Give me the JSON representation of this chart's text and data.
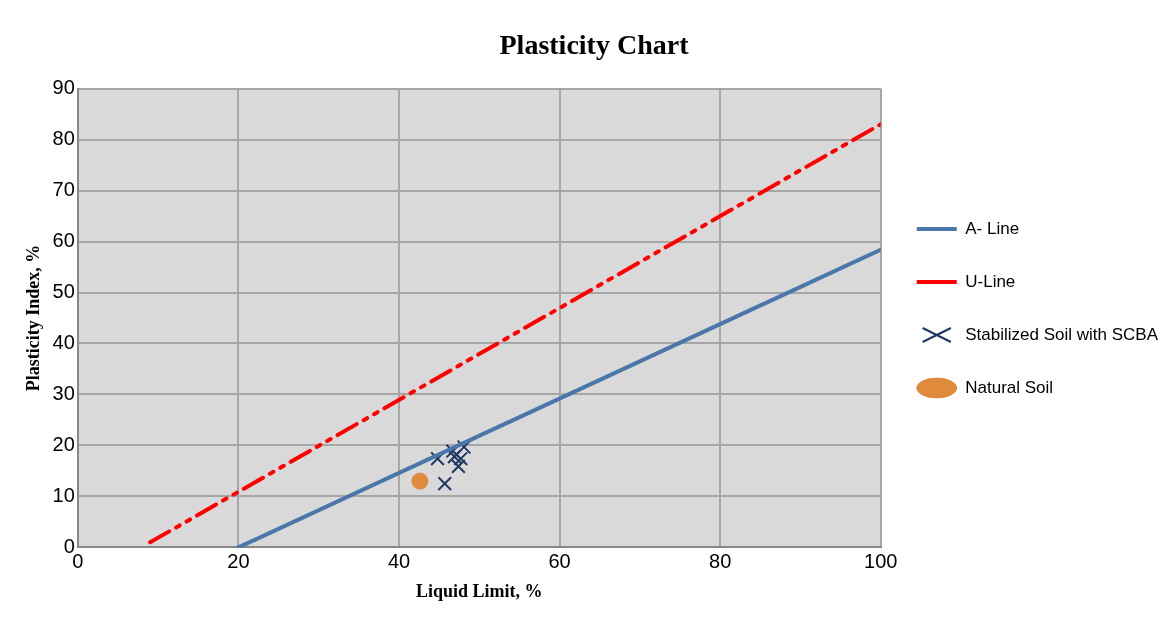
{
  "chart_data": {
    "type": "scatter",
    "title": "Plasticity Chart",
    "xlabel": "Liquid Limit, %",
    "ylabel": "Plasticity Index, %",
    "xlim": [
      0,
      100
    ],
    "xticks": [
      0,
      20,
      40,
      60,
      80,
      100
    ],
    "ylim": [
      0,
      90
    ],
    "yticks": [
      0,
      10,
      20,
      30,
      40,
      50,
      60,
      70,
      80,
      90
    ],
    "grid": true,
    "legend": "right",
    "series": [
      {
        "name": "A- Line",
        "type": "line",
        "color": "#4a76aa",
        "marker": "none",
        "line_style": "solid",
        "x": [
          20,
          100
        ],
        "values": [
          0,
          58.4
        ]
      },
      {
        "name": "U-Line",
        "type": "line",
        "color": "#ff0000",
        "marker": "none",
        "line_style": "dashed",
        "x": [
          9,
          100
        ],
        "values": [
          1,
          83
        ]
      },
      {
        "name": "Stabilized Soil with SCBA",
        "type": "scatter",
        "color": "#1f3864",
        "marker": "cross",
        "x": [
          44.8,
          45.7,
          46.7,
          47.7,
          48.1,
          47.4,
          46.9
        ],
        "values": [
          17.4,
          12.5,
          18.9,
          17.4,
          19.7,
          15.9,
          17.8
        ]
      },
      {
        "name": "Natural Soil",
        "type": "scatter",
        "color": "#e08a3c",
        "marker": "circle",
        "x": [
          42.6
        ],
        "values": [
          13
        ]
      }
    ]
  }
}
